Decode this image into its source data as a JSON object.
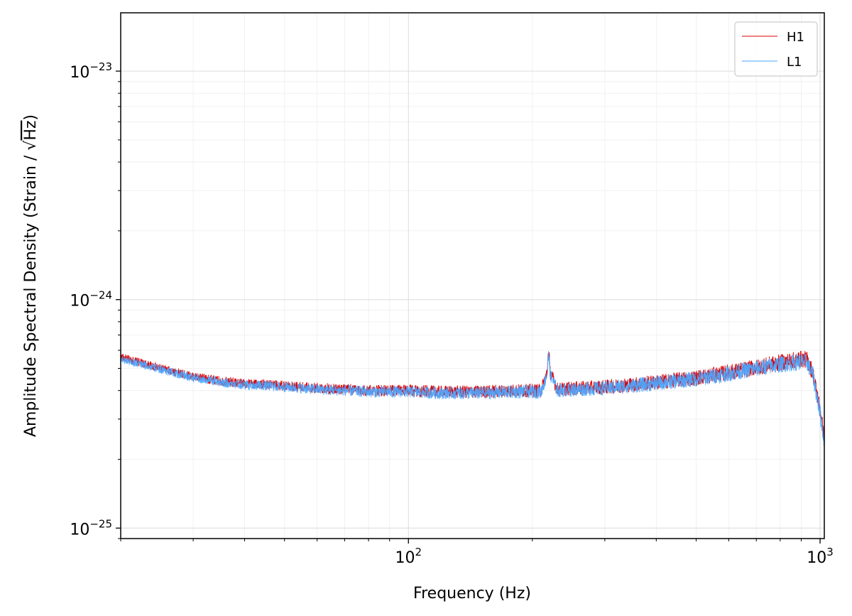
{
  "chart_data": {
    "type": "line",
    "title": "",
    "xlabel": "Frequency (Hz)",
    "ylabel": "Amplitude Spectral Density (Strain / √Hz)",
    "ylabel_prefix": "Amplitude Spectral Density (Strain / ",
    "ylabel_radical": "√",
    "ylabel_radicand": "Hz",
    "ylabel_suffix": ")",
    "xscale": "log",
    "yscale": "log",
    "xlim": [
      20,
      1024
    ],
    "ylim": [
      9e-26,
      1.8e-23
    ],
    "grid": true,
    "legend_position": "top-right",
    "x_ticks": [
      {
        "value": 100,
        "base": "10",
        "exp": "2"
      },
      {
        "value": 1000,
        "base": "10",
        "exp": "3"
      }
    ],
    "y_ticks": [
      {
        "value": 1e-25,
        "base": "10",
        "exp": "−25"
      },
      {
        "value": 1e-24,
        "base": "10",
        "exp": "−24"
      },
      {
        "value": 1e-23,
        "base": "10",
        "exp": "−23"
      }
    ],
    "series": [
      {
        "name": "H1",
        "color": "#e00000",
        "x": [
          20,
          25,
          30,
          35,
          40,
          50,
          60,
          70,
          80,
          90,
          100,
          120,
          150,
          180,
          210,
          219,
          230,
          260,
          300,
          350,
          400,
          500,
          600,
          700,
          800,
          900,
          930,
          960,
          1000,
          1024
        ],
        "y": [
          5.6e-25,
          5e-25,
          4.6e-25,
          4.4e-25,
          4.3e-25,
          4.2e-25,
          4.1e-25,
          4.05e-25,
          4e-25,
          4e-25,
          4e-25,
          3.95e-25,
          3.95e-25,
          4e-25,
          4e-25,
          5e-25,
          4.05e-25,
          4.1e-25,
          4.15e-25,
          4.25e-25,
          4.35e-25,
          4.55e-25,
          4.8e-25,
          5.05e-25,
          5.3e-25,
          5.5e-25,
          5.45e-25,
          4.8e-25,
          3.3e-25,
          2.45e-25
        ]
      },
      {
        "name": "L1",
        "color": "#4da6ff",
        "x": [
          20,
          25,
          30,
          35,
          40,
          50,
          60,
          70,
          80,
          90,
          100,
          120,
          150,
          180,
          210,
          219,
          230,
          260,
          300,
          350,
          400,
          500,
          600,
          700,
          800,
          900,
          930,
          960,
          1000,
          1024
        ],
        "y": [
          5.5e-25,
          4.95e-25,
          4.55e-25,
          4.35e-25,
          4.25e-25,
          4.15e-25,
          4.05e-25,
          4e-25,
          3.95e-25,
          3.95e-25,
          3.95e-25,
          3.9e-25,
          3.9e-25,
          3.95e-25,
          3.95e-25,
          4.9e-25,
          4e-25,
          4.05e-25,
          4.1e-25,
          4.2e-25,
          4.3e-25,
          4.5e-25,
          4.75e-25,
          5e-25,
          5.2e-25,
          5.35e-25,
          5.3e-25,
          4.7e-25,
          3.2e-25,
          2.4e-25
        ]
      }
    ]
  }
}
